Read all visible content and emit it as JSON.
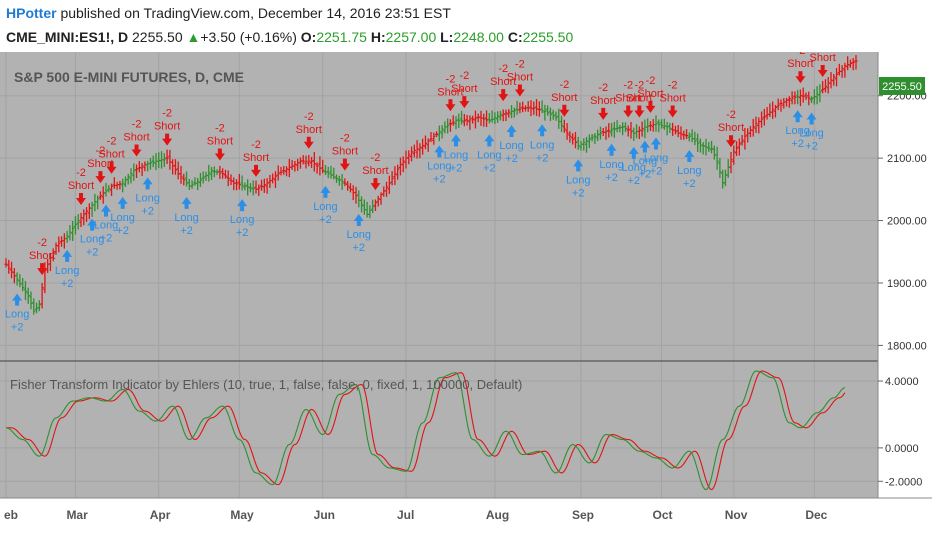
{
  "header": {
    "author": "HPotter",
    "published_text": "published on TradingView.com, December 14, 2016 23:51 EST",
    "symbol": "CME_MINI:ES1!, D",
    "last": "2255.50",
    "change": "+3.50 (+0.16%)",
    "open_label": "O:",
    "open": "2251.75",
    "high_label": "H:",
    "high": "2257.00",
    "low_label": "L:",
    "low": "2248.00",
    "close_label": "C:",
    "close": "2255.50"
  },
  "colors": {
    "background": "#b2b2b2",
    "up_bar": "#2f8f2f",
    "down_bar": "#e01414",
    "long_arrow": "#2b8fe8",
    "short_arrow": "#e01414",
    "fisher": "#2f8f2f",
    "trigger": "#e01414",
    "price_badge": "#2f8f2f"
  },
  "chart_data": [
    {
      "type": "ohlc",
      "title": "S&P 500 E-MINI FUTURES, D, CME",
      "x_labels": [
        "eb",
        "Mar",
        "Apr",
        "May",
        "Jun",
        "Jul",
        "Aug",
        "Sep",
        "Oct",
        "Nov",
        "Dec"
      ],
      "y_ticks": [
        "2200.00",
        "2100.00",
        "2000.00",
        "1900.00",
        "1800.00"
      ],
      "y_tick_values": [
        2200,
        2100,
        2000,
        1900,
        1800
      ],
      "ylim": [
        1775,
        2270
      ],
      "last_price_label": "2255.50",
      "last_price": 2255.5,
      "price_path": [
        [
          0,
          1930
        ],
        [
          4,
          1905
        ],
        [
          8,
          1880
        ],
        [
          10,
          1855
        ],
        [
          12,
          1865
        ],
        [
          14,
          1920
        ],
        [
          18,
          1960
        ],
        [
          22,
          1975
        ],
        [
          26,
          2000
        ],
        [
          30,
          2020
        ],
        [
          34,
          2040
        ],
        [
          38,
          2055
        ],
        [
          42,
          2060
        ],
        [
          46,
          2080
        ],
        [
          50,
          2090
        ],
        [
          54,
          2095
        ],
        [
          58,
          2100
        ],
        [
          62,
          2075
        ],
        [
          66,
          2055
        ],
        [
          70,
          2065
        ],
        [
          74,
          2080
        ],
        [
          78,
          2075
        ],
        [
          82,
          2060
        ],
        [
          86,
          2055
        ],
        [
          90,
          2050
        ],
        [
          94,
          2060
        ],
        [
          98,
          2075
        ],
        [
          102,
          2085
        ],
        [
          106,
          2095
        ],
        [
          110,
          2095
        ],
        [
          114,
          2080
        ],
        [
          118,
          2070
        ],
        [
          122,
          2060
        ],
        [
          126,
          2040
        ],
        [
          130,
          2010
        ],
        [
          134,
          2035
        ],
        [
          138,
          2060
        ],
        [
          142,
          2090
        ],
        [
          146,
          2110
        ],
        [
          150,
          2120
        ],
        [
          154,
          2135
        ],
        [
          158,
          2150
        ],
        [
          162,
          2160
        ],
        [
          166,
          2160
        ],
        [
          170,
          2165
        ],
        [
          174,
          2160
        ],
        [
          178,
          2170
        ],
        [
          182,
          2175
        ],
        [
          186,
          2180
        ],
        [
          190,
          2180
        ],
        [
          194,
          2175
        ],
        [
          198,
          2165
        ],
        [
          202,
          2140
        ],
        [
          206,
          2120
        ],
        [
          210,
          2130
        ],
        [
          214,
          2140
        ],
        [
          218,
          2145
        ],
        [
          222,
          2150
        ],
        [
          226,
          2140
        ],
        [
          230,
          2150
        ],
        [
          234,
          2155
        ],
        [
          238,
          2150
        ],
        [
          242,
          2140
        ],
        [
          246,
          2135
        ],
        [
          250,
          2120
        ],
        [
          254,
          2115
        ],
        [
          256,
          2095
        ],
        [
          258,
          2060
        ],
        [
          262,
          2110
        ],
        [
          266,
          2135
        ],
        [
          270,
          2155
        ],
        [
          274,
          2170
        ],
        [
          278,
          2185
        ],
        [
          282,
          2195
        ],
        [
          286,
          2200
        ],
        [
          290,
          2195
        ],
        [
          294,
          2210
        ],
        [
          298,
          2230
        ],
        [
          302,
          2248
        ],
        [
          306,
          2255.5
        ]
      ],
      "signals": [
        {
          "type": "long",
          "label": "Long",
          "qty": "+2",
          "t": 4
        },
        {
          "type": "short",
          "label": "Short",
          "qty": "-2",
          "t": 13
        },
        {
          "type": "long",
          "label": "Long",
          "qty": "+2",
          "t": 22
        },
        {
          "type": "short",
          "label": "Short",
          "qty": "-2",
          "t": 27
        },
        {
          "type": "long",
          "label": "Long",
          "qty": "+2",
          "t": 31
        },
        {
          "type": "short",
          "label": "Short",
          "qty": "-2",
          "t": 34
        },
        {
          "type": "long",
          "label": "Long",
          "qty": "+2",
          "t": 36
        },
        {
          "type": "short",
          "label": "Short",
          "qty": "-2",
          "t": 38
        },
        {
          "type": "long",
          "label": "Long",
          "qty": "+2",
          "t": 42
        },
        {
          "type": "short",
          "label": "Short",
          "qty": "-2",
          "t": 47
        },
        {
          "type": "long",
          "label": "Long",
          "qty": "+2",
          "t": 51
        },
        {
          "type": "short",
          "label": "Short",
          "qty": "-2",
          "t": 58
        },
        {
          "type": "long",
          "label": "Long",
          "qty": "+2",
          "t": 65
        },
        {
          "type": "short",
          "label": "Short",
          "qty": "-2",
          "t": 77
        },
        {
          "type": "long",
          "label": "Long",
          "qty": "+2",
          "t": 85
        },
        {
          "type": "short",
          "label": "Short",
          "qty": "-2",
          "t": 90
        },
        {
          "type": "short",
          "label": "Short",
          "qty": "-2",
          "t": 109
        },
        {
          "type": "long",
          "label": "Long",
          "qty": "+2",
          "t": 115
        },
        {
          "type": "short",
          "label": "Short",
          "qty": "-2",
          "t": 122
        },
        {
          "type": "long",
          "label": "Long",
          "qty": "+2",
          "t": 127
        },
        {
          "type": "short",
          "label": "Short",
          "qty": "-2",
          "t": 133
        },
        {
          "type": "long",
          "label": "Long",
          "qty": "+2",
          "t": 156
        },
        {
          "type": "short",
          "label": "Short",
          "qty": "-2",
          "t": 160
        },
        {
          "type": "long",
          "label": "Long",
          "qty": "+2",
          "t": 162
        },
        {
          "type": "short",
          "label": "Short",
          "qty": "-2",
          "t": 165
        },
        {
          "type": "long",
          "label": "Long",
          "qty": "+2",
          "t": 174
        },
        {
          "type": "short",
          "label": "Short",
          "qty": "-2",
          "t": 179
        },
        {
          "type": "long",
          "label": "Long",
          "qty": "+2",
          "t": 182
        },
        {
          "type": "short",
          "label": "Short",
          "qty": "-2",
          "t": 185
        },
        {
          "type": "long",
          "label": "Long",
          "qty": "+2",
          "t": 193
        },
        {
          "type": "short",
          "label": "Short",
          "qty": "-2",
          "t": 201
        },
        {
          "type": "long",
          "label": "Long",
          "qty": "+2",
          "t": 206
        },
        {
          "type": "short",
          "label": "Short",
          "qty": "-2",
          "t": 215
        },
        {
          "type": "long",
          "label": "Long",
          "qty": "+2",
          "t": 218
        },
        {
          "type": "short",
          "label": "Short",
          "qty": "-2",
          "t": 224
        },
        {
          "type": "long",
          "label": "Long",
          "qty": "+2",
          "t": 226
        },
        {
          "type": "short",
          "label": "Short",
          "qty": "-2",
          "t": 228
        },
        {
          "type": "long",
          "label": "Long",
          "qty": "+2",
          "t": 230
        },
        {
          "type": "short",
          "label": "Short",
          "qty": "-2",
          "t": 232
        },
        {
          "type": "long",
          "label": "Long",
          "qty": "+2",
          "t": 234
        },
        {
          "type": "short",
          "label": "Short",
          "qty": "-2",
          "t": 240
        },
        {
          "type": "long",
          "label": "Long",
          "qty": "+2",
          "t": 246
        },
        {
          "type": "short",
          "label": "Short",
          "qty": "-2",
          "t": 261
        },
        {
          "type": "long",
          "label": "Long",
          "qty": "+2",
          "t": 285
        },
        {
          "type": "short",
          "label": "Short",
          "qty": "-2",
          "t": 286
        },
        {
          "type": "long",
          "label": "Long",
          "qty": "+2",
          "t": 290
        },
        {
          "type": "short",
          "label": "Short",
          "qty": "-2",
          "t": 294
        }
      ]
    },
    {
      "type": "line",
      "title": "Fisher Transform Indicator by Ehlers (10, true, 1, false, false, 0, fixed, 1, 100000, Default)",
      "y_ticks": [
        "4.0000",
        "0.0000",
        "-2.0000"
      ],
      "y_tick_values": [
        4,
        0,
        -2
      ],
      "ylim": [
        -3,
        5.2
      ],
      "series": [
        {
          "key": "fisher",
          "color": "#2f8f2f",
          "points": [
            [
              0,
              1.2
            ],
            [
              6,
              0.5
            ],
            [
              12,
              -0.5
            ],
            [
              18,
              1.8
            ],
            [
              24,
              2.8
            ],
            [
              30,
              3.0
            ],
            [
              36,
              2.8
            ],
            [
              42,
              3.5
            ],
            [
              48,
              2.2
            ],
            [
              54,
              1.6
            ],
            [
              60,
              2.5
            ],
            [
              66,
              0.5
            ],
            [
              72,
              1.8
            ],
            [
              78,
              2.5
            ],
            [
              84,
              0.5
            ],
            [
              90,
              -1.5
            ],
            [
              96,
              -2.2
            ],
            [
              102,
              0.2
            ],
            [
              108,
              2.3
            ],
            [
              114,
              0.8
            ],
            [
              120,
              3.2
            ],
            [
              126,
              3.8
            ],
            [
              132,
              -0.4
            ],
            [
              138,
              -1.2
            ],
            [
              144,
              -1.4
            ],
            [
              150,
              1.5
            ],
            [
              156,
              4.2
            ],
            [
              162,
              4.5
            ],
            [
              168,
              0.5
            ],
            [
              174,
              -0.5
            ],
            [
              180,
              1.0
            ],
            [
              186,
              -0.4
            ],
            [
              192,
              -0.2
            ],
            [
              198,
              -1.5
            ],
            [
              204,
              0.2
            ],
            [
              210,
              -0.9
            ],
            [
              216,
              0.8
            ],
            [
              222,
              0.5
            ],
            [
              228,
              -0.2
            ],
            [
              234,
              -0.6
            ],
            [
              240,
              -1.2
            ],
            [
              246,
              -0.2
            ],
            [
              252,
              -2.5
            ],
            [
              258,
              0.5
            ],
            [
              264,
              2.5
            ],
            [
              270,
              4.6
            ],
            [
              276,
              4.2
            ],
            [
              282,
              1.5
            ],
            [
              286,
              1.2
            ],
            [
              292,
              2.1
            ],
            [
              298,
              3.0
            ],
            [
              302,
              3.6
            ]
          ]
        },
        {
          "key": "trigger",
          "color": "#e01414",
          "lag": 2
        }
      ]
    }
  ]
}
